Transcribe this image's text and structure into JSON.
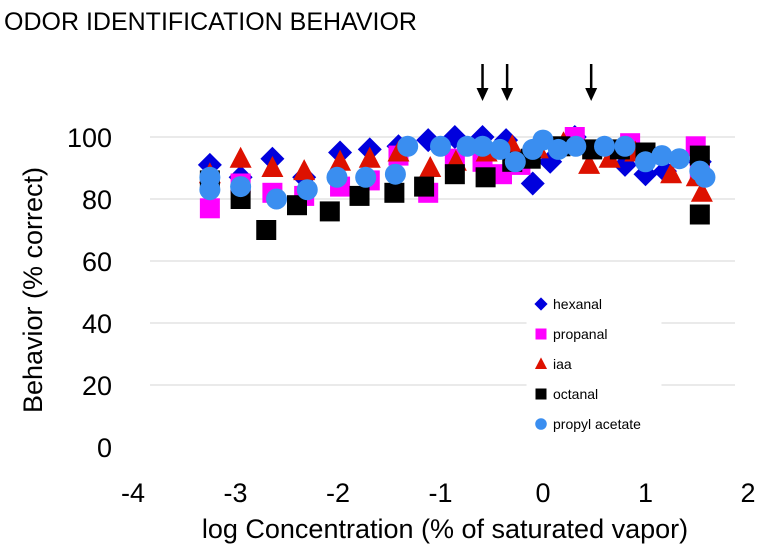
{
  "chart_data": {
    "type": "scatter",
    "title": "ODOR IDENTIFICATION BEHAVIOR",
    "xlabel": "log Concentration (% of saturated vapor)",
    "ylabel": "Behavior (% correct)",
    "xlim": [
      -4,
      2
    ],
    "ylim": [
      0,
      110
    ],
    "xticks": [
      "-4",
      "-3",
      "-2",
      "-1",
      "0",
      "1",
      "2"
    ],
    "xtick_values": [
      -4,
      -3,
      -2,
      -1,
      0,
      1,
      2
    ],
    "yticks": [
      "0",
      "20",
      "40",
      "60",
      "80",
      "100"
    ],
    "ytick_values": [
      0,
      20,
      40,
      60,
      80,
      100
    ],
    "grid": true,
    "legend_position": "bottom-right",
    "arrows_at_x": [
      -0.59,
      -0.35,
      0.47
    ],
    "series": [
      {
        "name": "hexanal",
        "marker": "diamond",
        "color": "#0000dd",
        "x": [
          -3.25,
          -2.95,
          -2.64,
          -2.33,
          -1.98,
          -1.69,
          -1.41,
          -1.12,
          -0.86,
          -0.59,
          -0.36,
          -0.1,
          0.07,
          0.31,
          0.8,
          1.0,
          1.19,
          1.53
        ],
        "y": [
          91,
          87,
          93,
          87,
          95,
          96,
          97,
          99,
          100,
          100,
          99,
          85,
          92,
          100,
          91,
          88,
          89,
          92
        ]
      },
      {
        "name": "propanal",
        "marker": "square",
        "color": "#ff00ff",
        "x": [
          -3.25,
          -2.95,
          -2.64,
          -2.33,
          -1.98,
          -1.69,
          -1.41,
          -1.12,
          -0.86,
          -0.59,
          -0.4,
          -0.22,
          0.31,
          0.85,
          1.49,
          1.53
        ],
        "y": [
          77,
          85,
          82,
          81,
          84,
          86,
          94,
          82,
          93,
          92,
          88,
          91,
          100,
          98,
          97,
          89
        ]
      },
      {
        "name": "iaa",
        "marker": "triangle",
        "color": "#dd1100",
        "x": [
          -3.25,
          -2.95,
          -2.64,
          -2.33,
          -1.98,
          -1.69,
          -1.41,
          -1.1,
          -0.85,
          -0.55,
          -0.3,
          -0.05,
          0.2,
          0.45,
          0.65,
          0.9,
          1.25,
          1.5,
          1.55
        ],
        "y": [
          88,
          93,
          90,
          89,
          92,
          93,
          95,
          90,
          92,
          95,
          97,
          96,
          98,
          91,
          93,
          95,
          88,
          87,
          82
        ]
      },
      {
        "name": "octanal",
        "marker": "square",
        "color": "#000000",
        "x": [
          -3.25,
          -2.95,
          -2.7,
          -2.4,
          -2.08,
          -1.79,
          -1.45,
          -1.16,
          -0.86,
          -0.56,
          -0.3,
          -0.12,
          0.17,
          0.48,
          0.75,
          1.0,
          1.53,
          1.53
        ],
        "y": [
          86,
          80,
          70,
          78,
          76,
          81,
          82,
          84,
          88,
          87,
          92,
          93,
          97,
          96,
          96,
          95,
          75,
          94
        ]
      },
      {
        "name": "propyl acetate",
        "marker": "circle",
        "color": "#3a8ef0",
        "x": [
          -3.25,
          -3.25,
          -2.95,
          -2.6,
          -2.3,
          -2.01,
          -1.73,
          -1.44,
          -1.32,
          -1.0,
          -0.74,
          -0.59,
          -0.42,
          -0.27,
          -0.1,
          0.0,
          0.15,
          0.32,
          0.6,
          0.8,
          1.0,
          1.16,
          1.33,
          1.53,
          1.58
        ],
        "y": [
          87,
          83,
          84,
          80,
          83,
          87,
          87,
          88,
          97,
          97,
          97,
          97,
          96,
          92,
          96,
          99,
          96,
          97,
          97,
          97,
          92,
          94,
          93,
          89,
          87
        ]
      }
    ]
  }
}
